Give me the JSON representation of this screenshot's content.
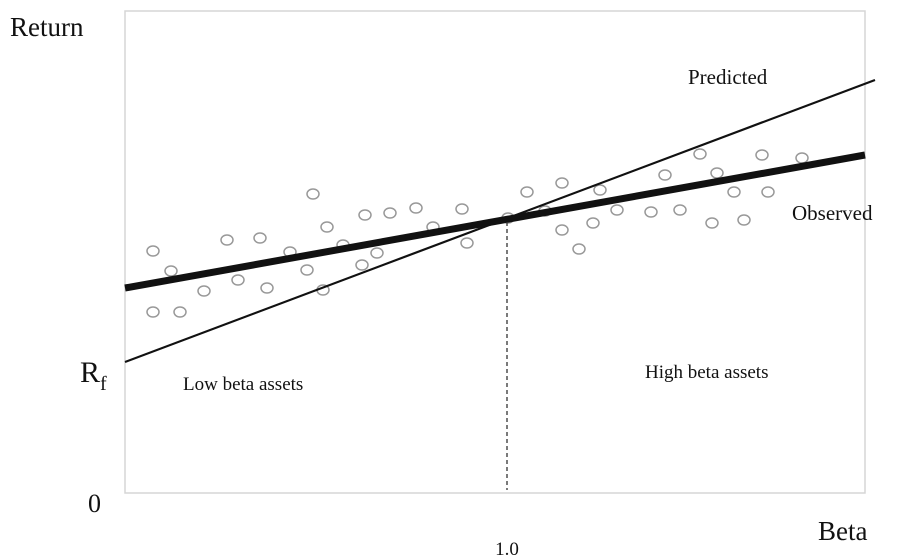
{
  "y_axis": {
    "title": "Return",
    "rf": "R",
    "rf_sub": "f",
    "origin": "0"
  },
  "x_axis": {
    "title": "Beta",
    "tick": "1.0"
  },
  "lines": {
    "predicted": "Predicted",
    "observed": "Observed"
  },
  "regions": {
    "low": "Low beta assets",
    "high": "High beta assets"
  }
}
